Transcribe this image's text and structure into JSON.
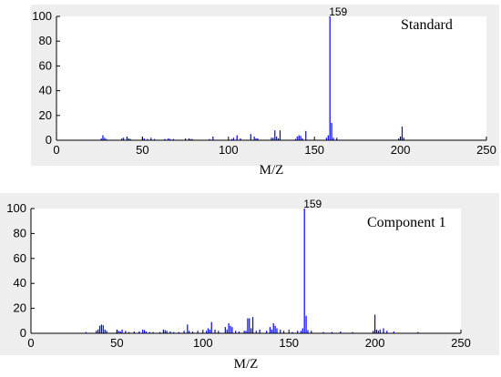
{
  "chart_data": [
    {
      "type": "bar",
      "legend": "Standard",
      "xlabel": "M/Z",
      "ylabel": "",
      "xlim": [
        0,
        250
      ],
      "ylim": [
        0,
        100
      ],
      "xticks": [
        0,
        50,
        100,
        150,
        200,
        250
      ],
      "yticks": [
        0,
        20,
        40,
        60,
        80,
        100
      ],
      "color": "#0000ff",
      "peak_label": "159",
      "x": [
        26,
        27,
        28,
        29,
        38,
        39,
        41,
        42,
        43,
        50,
        51,
        53,
        55,
        57,
        63,
        65,
        66,
        68,
        75,
        77,
        78,
        79,
        89,
        91,
        102,
        103,
        105,
        107,
        113,
        115,
        116,
        117,
        125,
        126,
        127,
        128,
        129,
        130,
        139,
        140,
        141,
        142,
        143,
        145,
        157,
        158,
        159,
        160,
        161,
        163,
        199,
        200,
        201,
        202
      ],
      "y": [
        1.5,
        4,
        2,
        1,
        1.5,
        2,
        3,
        1.5,
        1,
        2.5,
        1.5,
        1,
        2,
        1,
        1,
        1.5,
        1,
        1,
        1.5,
        1.5,
        1,
        1,
        1,
        3,
        1,
        2,
        4,
        1.5,
        5,
        3,
        1.5,
        1.5,
        2,
        2,
        8,
        3,
        1.5,
        8,
        1,
        3,
        4,
        3.5,
        1.5,
        7.5,
        2,
        4,
        100,
        14,
        2,
        2,
        1.5,
        3,
        11,
        2
      ]
    },
    {
      "type": "bar",
      "legend": "Component 1",
      "xlabel": "M/Z",
      "ylabel": "",
      "xlim": [
        0,
        250
      ],
      "ylim": [
        0,
        100
      ],
      "xticks": [
        0,
        50,
        100,
        150,
        200,
        250
      ],
      "yticks": [
        0,
        20,
        40,
        60,
        80,
        100
      ],
      "color": "#0000ff",
      "peak_label": "159",
      "x": [
        32,
        38,
        39,
        40,
        41,
        42,
        43,
        44,
        50,
        51,
        52,
        53,
        55,
        57,
        60,
        63,
        65,
        66,
        67,
        69,
        71,
        75,
        77,
        78,
        79,
        81,
        83,
        86,
        89,
        91,
        92,
        94,
        97,
        102,
        103,
        104,
        105,
        107,
        109,
        113,
        114,
        115,
        116,
        117,
        119,
        121,
        124,
        125,
        126,
        127,
        128,
        129,
        131,
        133,
        137,
        139,
        140,
        141,
        142,
        143,
        145,
        147,
        152,
        155,
        157,
        158,
        159,
        160,
        161,
        163,
        170,
        175,
        180,
        187,
        199,
        200,
        201,
        202,
        203,
        205,
        207,
        211,
        225
      ],
      "y": [
        1,
        2,
        3,
        6,
        7,
        6.5,
        3,
        2,
        2.5,
        2,
        1.5,
        3,
        2,
        1,
        1.5,
        1.5,
        3,
        2.5,
        1.5,
        1,
        1,
        1,
        3,
        2.5,
        2,
        1.5,
        1,
        1,
        2,
        7,
        2,
        1.5,
        2,
        2,
        4,
        3,
        9,
        3,
        2,
        5,
        3,
        8,
        6,
        5,
        2,
        1.5,
        2,
        2,
        12,
        12,
        4,
        13,
        2,
        3,
        2,
        5,
        3,
        8,
        6,
        4,
        3,
        2,
        1,
        2,
        2,
        4,
        100,
        14,
        2.5,
        2,
        1,
        1,
        1.5,
        1,
        2,
        15,
        3,
        2,
        3,
        4,
        2,
        1.5,
        1
      ]
    }
  ]
}
